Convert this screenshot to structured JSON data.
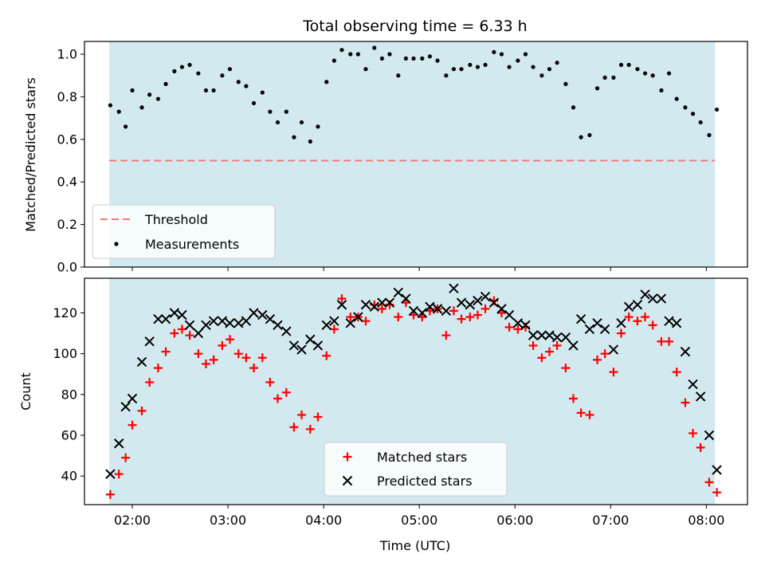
{
  "chart_data": [
    {
      "type": "scatter",
      "title": "Total observing time = 6.33 h",
      "xlabel": "",
      "ylabel": "Matched/Predicted stars",
      "ylim": [
        0,
        1.06
      ],
      "yticks": [
        "0.0",
        "0.2",
        "0.4",
        "0.6",
        "0.8",
        "1.0"
      ],
      "observing_window_hours": [
        1.76,
        8.09
      ],
      "shade_color": "#d3e9f0",
      "threshold": {
        "name": "Threshold",
        "value": 0.5,
        "color": "#f07a7a"
      },
      "legend_position": "lower left",
      "series": [
        {
          "name": "Measurements",
          "color": "#000000",
          "points": [
            [
              1.77,
              0.76
            ],
            [
              1.86,
              0.73
            ],
            [
              1.93,
              0.66
            ],
            [
              2.0,
              0.83
            ],
            [
              2.1,
              0.75
            ],
            [
              2.18,
              0.81
            ],
            [
              2.27,
              0.79
            ],
            [
              2.35,
              0.86
            ],
            [
              2.44,
              0.92
            ],
            [
              2.52,
              0.94
            ],
            [
              2.6,
              0.95
            ],
            [
              2.69,
              0.91
            ],
            [
              2.77,
              0.83
            ],
            [
              2.85,
              0.83
            ],
            [
              2.94,
              0.9
            ],
            [
              3.02,
              0.93
            ],
            [
              3.11,
              0.87
            ],
            [
              3.19,
              0.85
            ],
            [
              3.27,
              0.77
            ],
            [
              3.36,
              0.82
            ],
            [
              3.44,
              0.73
            ],
            [
              3.52,
              0.68
            ],
            [
              3.61,
              0.73
            ],
            [
              3.69,
              0.61
            ],
            [
              3.77,
              0.68
            ],
            [
              3.86,
              0.59
            ],
            [
              3.94,
              0.66
            ],
            [
              4.03,
              0.87
            ],
            [
              4.11,
              0.97
            ],
            [
              4.19,
              1.02
            ],
            [
              4.28,
              1.0
            ],
            [
              4.36,
              1.0
            ],
            [
              4.44,
              0.93
            ],
            [
              4.53,
              1.03
            ],
            [
              4.61,
              0.98
            ],
            [
              4.69,
              1.0
            ],
            [
              4.78,
              0.9
            ],
            [
              4.86,
              0.98
            ],
            [
              4.94,
              0.98
            ],
            [
              5.03,
              0.98
            ],
            [
              5.11,
              0.99
            ],
            [
              5.19,
              0.97
            ],
            [
              5.28,
              0.9
            ],
            [
              5.36,
              0.93
            ],
            [
              5.44,
              0.93
            ],
            [
              5.53,
              0.95
            ],
            [
              5.61,
              0.94
            ],
            [
              5.69,
              0.95
            ],
            [
              5.78,
              1.01
            ],
            [
              5.86,
              1.0
            ],
            [
              5.94,
              0.94
            ],
            [
              6.03,
              0.97
            ],
            [
              6.11,
              1.0
            ],
            [
              6.19,
              0.94
            ],
            [
              6.28,
              0.9
            ],
            [
              6.36,
              0.93
            ],
            [
              6.44,
              0.96
            ],
            [
              6.53,
              0.86
            ],
            [
              6.61,
              0.75
            ],
            [
              6.69,
              0.61
            ],
            [
              6.78,
              0.62
            ],
            [
              6.86,
              0.84
            ],
            [
              6.94,
              0.89
            ],
            [
              7.03,
              0.89
            ],
            [
              7.11,
              0.95
            ],
            [
              7.19,
              0.95
            ],
            [
              7.28,
              0.93
            ],
            [
              7.36,
              0.91
            ],
            [
              7.44,
              0.9
            ],
            [
              7.53,
              0.83
            ],
            [
              7.61,
              0.91
            ],
            [
              7.69,
              0.79
            ],
            [
              7.78,
              0.75
            ],
            [
              7.86,
              0.72
            ],
            [
              7.94,
              0.68
            ],
            [
              8.03,
              0.62
            ],
            [
              8.11,
              0.74
            ]
          ]
        }
      ]
    },
    {
      "type": "scatter",
      "title": "",
      "xlabel": "Time (UTC)",
      "ylabel": "Count",
      "ylim": [
        26,
        137
      ],
      "yticks": [
        "40",
        "60",
        "80",
        "100",
        "120"
      ],
      "xlim_hours": [
        1.5,
        8.43
      ],
      "xticks": [
        {
          "hour": 2,
          "label": "02:00"
        },
        {
          "hour": 3,
          "label": "03:00"
        },
        {
          "hour": 4,
          "label": "04:00"
        },
        {
          "hour": 5,
          "label": "05:00"
        },
        {
          "hour": 6,
          "label": "06:00"
        },
        {
          "hour": 7,
          "label": "07:00"
        },
        {
          "hour": 8,
          "label": "08:00"
        }
      ],
      "observing_window_hours": [
        1.76,
        8.09
      ],
      "shade_color": "#d3e9f0",
      "legend_position": "lower center",
      "series": [
        {
          "name": "Matched stars",
          "marker": "plus",
          "color": "#ff0000",
          "points": [
            [
              1.77,
              31
            ],
            [
              1.86,
              41
            ],
            [
              1.93,
              49
            ],
            [
              2.0,
              65
            ],
            [
              2.1,
              72
            ],
            [
              2.18,
              86
            ],
            [
              2.27,
              93
            ],
            [
              2.35,
              101
            ],
            [
              2.44,
              110
            ],
            [
              2.52,
              112
            ],
            [
              2.6,
              109
            ],
            [
              2.69,
              100
            ],
            [
              2.77,
              95
            ],
            [
              2.85,
              97
            ],
            [
              2.94,
              104
            ],
            [
              3.02,
              107
            ],
            [
              3.11,
              100
            ],
            [
              3.19,
              98
            ],
            [
              3.27,
              93
            ],
            [
              3.36,
              98
            ],
            [
              3.44,
              86
            ],
            [
              3.52,
              78
            ],
            [
              3.61,
              81
            ],
            [
              3.69,
              64
            ],
            [
              3.77,
              70
            ],
            [
              3.86,
              63
            ],
            [
              3.94,
              69
            ],
            [
              4.03,
              99
            ],
            [
              4.11,
              112
            ],
            [
              4.19,
              127
            ],
            [
              4.28,
              118
            ],
            [
              4.36,
              118
            ],
            [
              4.44,
              116
            ],
            [
              4.53,
              124
            ],
            [
              4.61,
              122
            ],
            [
              4.69,
              124
            ],
            [
              4.78,
              118
            ],
            [
              4.86,
              125
            ],
            [
              4.94,
              119
            ],
            [
              5.03,
              118
            ],
            [
              5.11,
              121
            ],
            [
              5.19,
              122
            ],
            [
              5.28,
              109
            ],
            [
              5.36,
              121
            ],
            [
              5.44,
              117
            ],
            [
              5.53,
              118
            ],
            [
              5.61,
              119
            ],
            [
              5.69,
              122
            ],
            [
              5.78,
              126
            ],
            [
              5.86,
              120
            ],
            [
              5.94,
              113
            ],
            [
              6.03,
              112
            ],
            [
              6.11,
              113
            ],
            [
              6.19,
              104
            ],
            [
              6.28,
              98
            ],
            [
              6.36,
              101
            ],
            [
              6.44,
              104
            ],
            [
              6.53,
              93
            ],
            [
              6.61,
              78
            ],
            [
              6.69,
              71
            ],
            [
              6.78,
              70
            ],
            [
              6.86,
              97
            ],
            [
              6.94,
              100
            ],
            [
              7.03,
              91
            ],
            [
              7.11,
              110
            ],
            [
              7.19,
              118
            ],
            [
              7.28,
              116
            ],
            [
              7.36,
              118
            ],
            [
              7.44,
              114
            ],
            [
              7.53,
              106
            ],
            [
              7.61,
              106
            ],
            [
              7.69,
              91
            ],
            [
              7.78,
              76
            ],
            [
              7.86,
              61
            ],
            [
              7.94,
              54
            ],
            [
              8.03,
              37
            ],
            [
              8.11,
              32
            ]
          ]
        },
        {
          "name": "Predicted stars",
          "marker": "x",
          "color": "#000000",
          "points": [
            [
              1.77,
              41
            ],
            [
              1.86,
              56
            ],
            [
              1.93,
              74
            ],
            [
              2.0,
              78
            ],
            [
              2.1,
              96
            ],
            [
              2.18,
              106
            ],
            [
              2.27,
              117
            ],
            [
              2.35,
              117
            ],
            [
              2.44,
              120
            ],
            [
              2.52,
              119
            ],
            [
              2.6,
              114
            ],
            [
              2.69,
              110
            ],
            [
              2.77,
              114
            ],
            [
              2.85,
              116
            ],
            [
              2.94,
              116
            ],
            [
              3.02,
              115
            ],
            [
              3.11,
              115
            ],
            [
              3.19,
              116
            ],
            [
              3.27,
              120
            ],
            [
              3.36,
              119
            ],
            [
              3.44,
              117
            ],
            [
              3.52,
              114
            ],
            [
              3.61,
              111
            ],
            [
              3.69,
              104
            ],
            [
              3.77,
              102
            ],
            [
              3.86,
              107
            ],
            [
              3.94,
              104
            ],
            [
              4.03,
              114
            ],
            [
              4.11,
              116
            ],
            [
              4.19,
              124
            ],
            [
              4.28,
              115
            ],
            [
              4.36,
              118
            ],
            [
              4.44,
              124
            ],
            [
              4.53,
              123
            ],
            [
              4.61,
              125
            ],
            [
              4.69,
              125
            ],
            [
              4.78,
              130
            ],
            [
              4.86,
              127
            ],
            [
              4.94,
              121
            ],
            [
              5.03,
              120
            ],
            [
              5.11,
              123
            ],
            [
              5.19,
              122
            ],
            [
              5.28,
              121
            ],
            [
              5.36,
              132
            ],
            [
              5.44,
              125
            ],
            [
              5.53,
              124
            ],
            [
              5.61,
              126
            ],
            [
              5.69,
              128
            ],
            [
              5.78,
              125
            ],
            [
              5.86,
              122
            ],
            [
              5.94,
              119
            ],
            [
              6.03,
              115
            ],
            [
              6.11,
              114
            ],
            [
              6.19,
              109
            ],
            [
              6.28,
              109
            ],
            [
              6.36,
              109
            ],
            [
              6.44,
              108
            ],
            [
              6.53,
              108
            ],
            [
              6.61,
              104
            ],
            [
              6.69,
              117
            ],
            [
              6.78,
              112
            ],
            [
              6.86,
              115
            ],
            [
              6.94,
              112
            ],
            [
              7.03,
              102
            ],
            [
              7.11,
              115
            ],
            [
              7.19,
              123
            ],
            [
              7.28,
              124
            ],
            [
              7.36,
              129
            ],
            [
              7.44,
              127
            ],
            [
              7.53,
              127
            ],
            [
              7.61,
              116
            ],
            [
              7.69,
              115
            ],
            [
              7.78,
              101
            ],
            [
              7.86,
              85
            ],
            [
              7.94,
              79
            ],
            [
              8.03,
              60
            ],
            [
              8.11,
              43
            ]
          ]
        }
      ]
    }
  ]
}
